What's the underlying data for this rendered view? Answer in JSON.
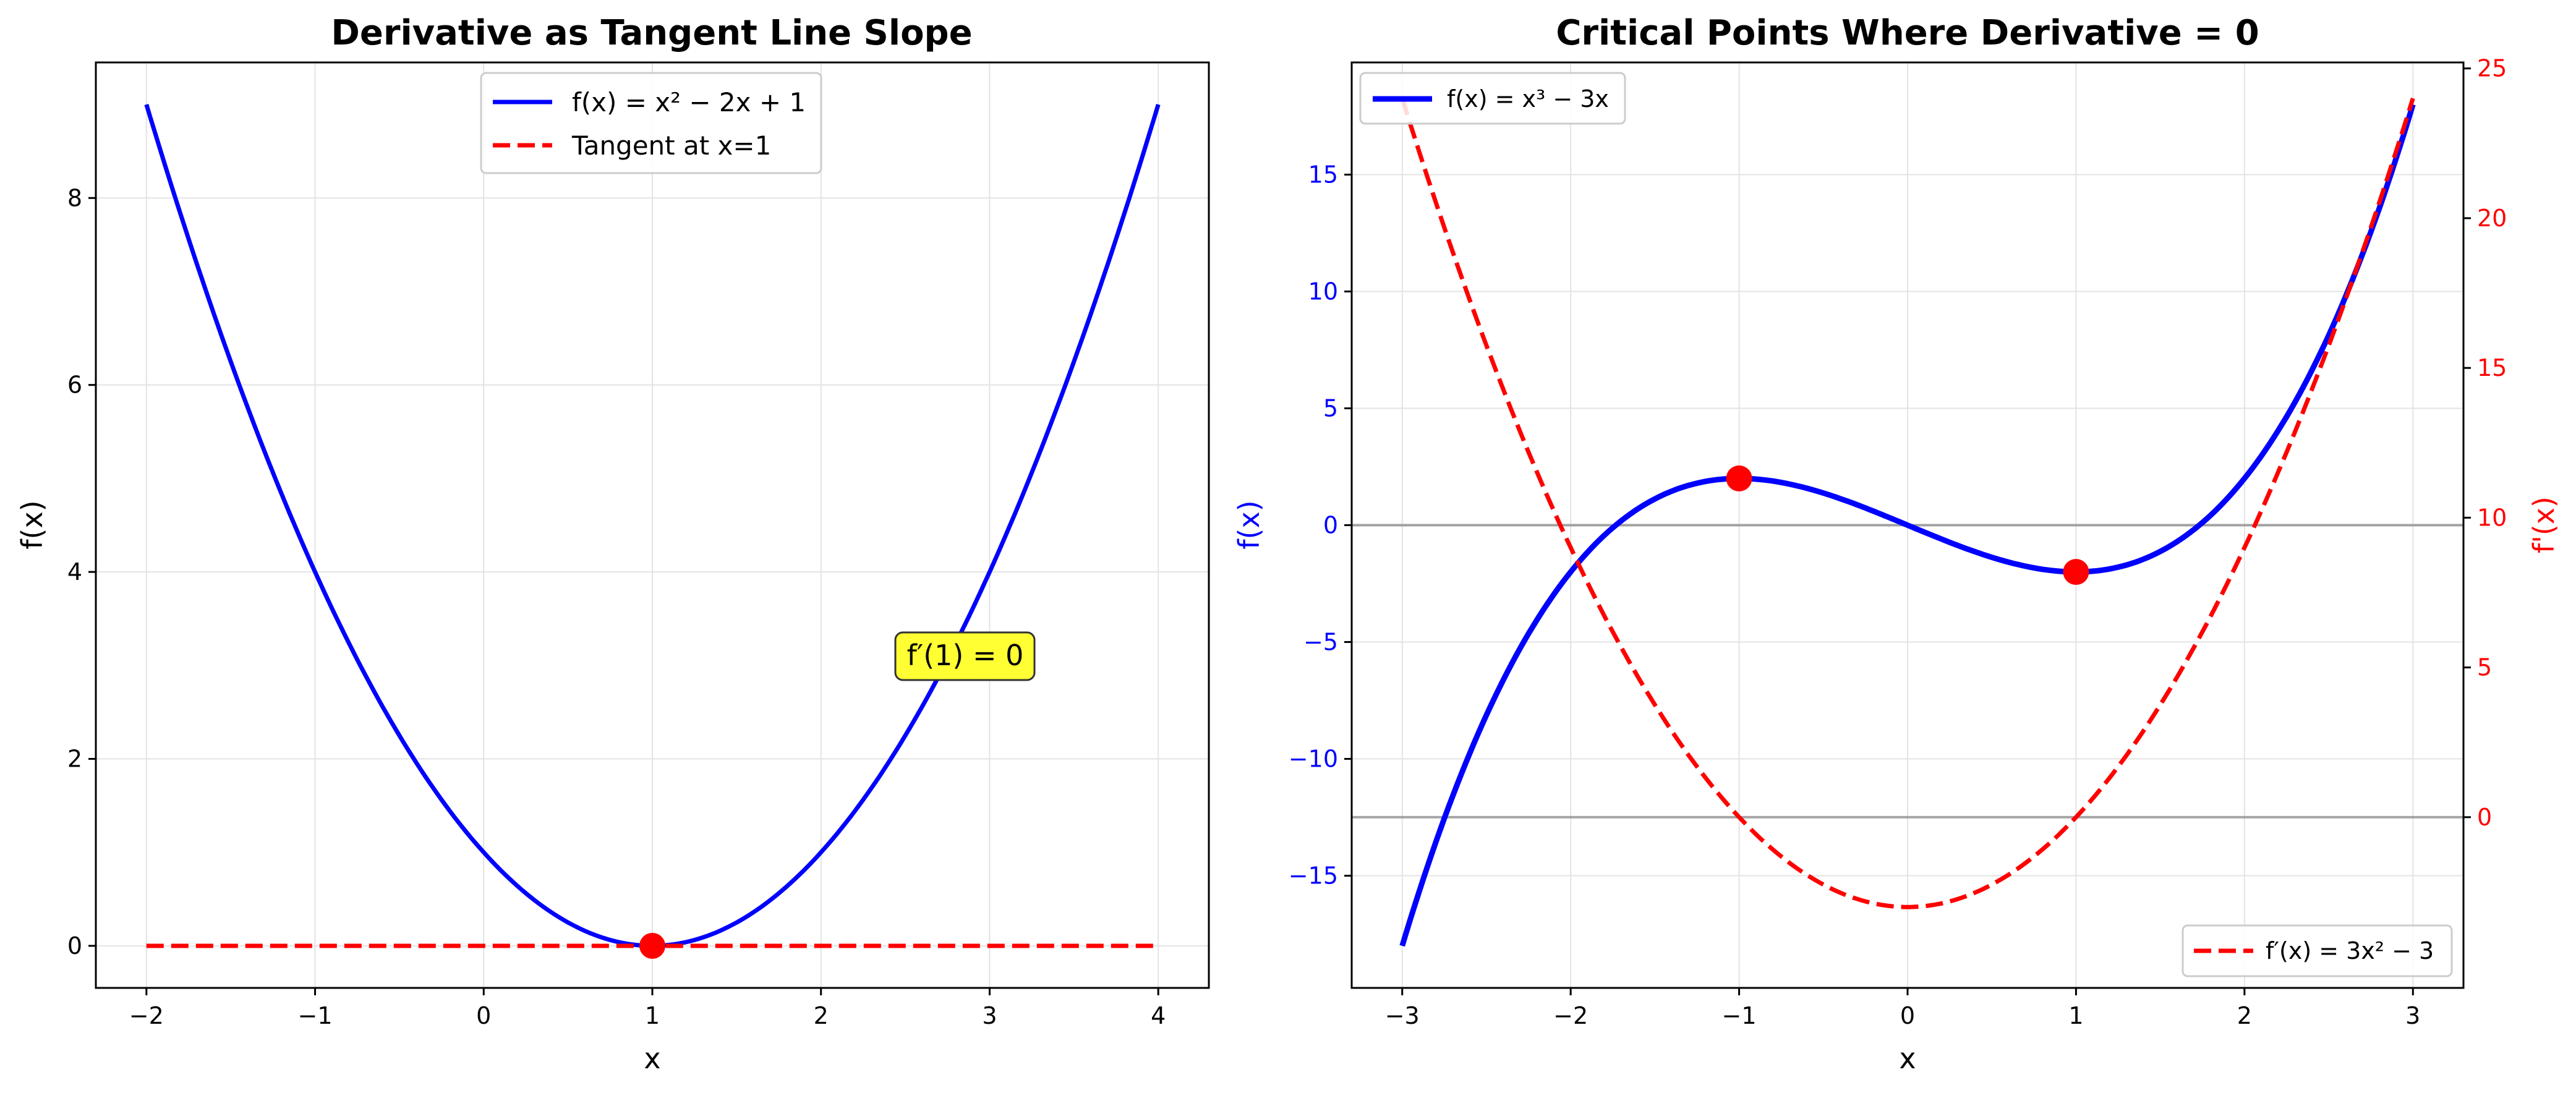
{
  "chart_data": [
    {
      "type": "line",
      "title": "Derivative as Tangent Line Slope",
      "xlabel": "x",
      "ylabel": "f(x)",
      "xlim": [
        -2.3,
        4.3
      ],
      "ylim": [
        -0.45,
        9.45
      ],
      "xticks": [
        -2,
        -1,
        0,
        1,
        2,
        3,
        4
      ],
      "yticks": [
        0,
        2,
        4,
        6,
        8
      ],
      "xtick_labels": [
        "−2",
        "−1",
        "0",
        "1",
        "2",
        "3",
        "4"
      ],
      "ytick_labels": [
        "0",
        "2",
        "4",
        "6",
        "8"
      ],
      "grid": true,
      "legend_position": "top-center",
      "series": [
        {
          "name": "f(x) = x² − 2x + 1",
          "formula": "x^2 - 2x + 1",
          "color": "#0000ff",
          "style": "solid",
          "x": [
            -2,
            -1.5,
            -1,
            -0.5,
            0,
            0.5,
            1,
            1.5,
            2,
            2.5,
            3,
            3.5,
            4
          ],
          "y": [
            9,
            6.25,
            4,
            2.25,
            1,
            0.25,
            0,
            0.25,
            1,
            2.25,
            4,
            6.25,
            9
          ]
        },
        {
          "name": "Tangent at x=1",
          "color": "#ff0000",
          "style": "dashed",
          "x": [
            -2,
            4
          ],
          "y": [
            0,
            0
          ]
        }
      ],
      "points": [
        {
          "x": 1,
          "y": 0,
          "color": "#ff0000"
        }
      ],
      "annotations": [
        {
          "text": "f′(1) = 0",
          "x": 2.5,
          "y": 3,
          "background": "#ffff33"
        }
      ]
    },
    {
      "type": "line",
      "title": "Critical Points Where Derivative = 0",
      "xlabel": "x",
      "ylabel": "f(x)",
      "ylabel_right": "f'(x)",
      "xlim": [
        -3.3,
        3.3
      ],
      "ylim": [
        -19.8,
        19.8
      ],
      "ylim_right": [
        -5.7,
        25.2
      ],
      "xticks": [
        -3,
        -2,
        -1,
        0,
        1,
        2,
        3
      ],
      "yticks": [
        -15,
        -10,
        -5,
        0,
        5,
        10,
        15
      ],
      "yticks_right": [
        0,
        5,
        10,
        15,
        20,
        25
      ],
      "xtick_labels": [
        "−3",
        "−2",
        "−1",
        "0",
        "1",
        "2",
        "3"
      ],
      "ytick_labels": [
        "−15",
        "−10",
        "−5",
        "0",
        "5",
        "10",
        "15"
      ],
      "ytick_labels_right": [
        "0",
        "5",
        "10",
        "15",
        "20",
        "25"
      ],
      "grid": true,
      "left_axis_color": "#0000ff",
      "right_axis_color": "#ff0000",
      "series": [
        {
          "name": "f(x) = x³ − 3x",
          "formula": "x^3 - 3x",
          "axis": "left",
          "color": "#0000ff",
          "style": "solid",
          "legend_position": "top-left",
          "x": [
            -3,
            -2.5,
            -2,
            -1.5,
            -1,
            -0.5,
            0,
            0.5,
            1,
            1.5,
            2,
            2.5,
            3
          ],
          "y": [
            -18,
            -8.125,
            -2,
            1.125,
            2,
            1.375,
            0,
            -1.375,
            -2,
            -1.125,
            2,
            8.125,
            18
          ]
        },
        {
          "name": "f′(x) = 3x² − 3",
          "formula": "3x^2 - 3",
          "axis": "right",
          "color": "#ff0000",
          "style": "dashed",
          "legend_position": "bottom-right",
          "x": [
            -3,
            -2.5,
            -2,
            -1.5,
            -1,
            -0.5,
            0,
            0.5,
            1,
            1.5,
            2,
            2.5,
            3
          ],
          "y": [
            24,
            15.75,
            9,
            3.75,
            0,
            -2.25,
            -3,
            -2.25,
            0,
            3.75,
            9,
            15.75,
            24
          ]
        }
      ],
      "points": [
        {
          "x": -1,
          "y": 2,
          "color": "#ff0000"
        },
        {
          "x": 1,
          "y": -2,
          "color": "#ff0000"
        }
      ],
      "reference_lines": [
        {
          "axis": "left",
          "y": 0,
          "color": "#808080"
        },
        {
          "axis": "right",
          "y": 0,
          "color": "#808080"
        }
      ]
    }
  ]
}
